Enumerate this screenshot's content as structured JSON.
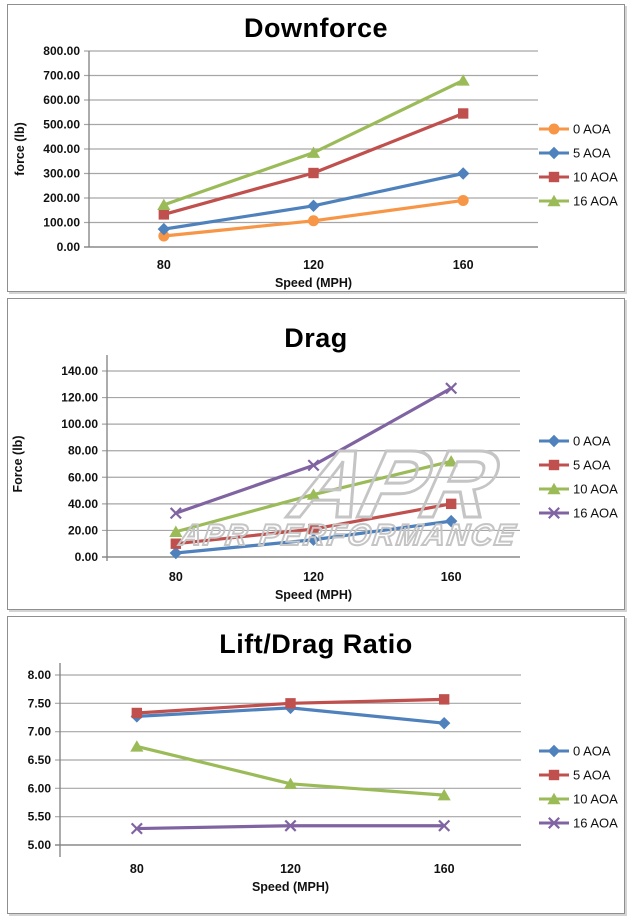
{
  "style": {
    "grid_color": "#a6a6a6",
    "axis_color": "#808080",
    "panel_border_color": "#8f8f8f",
    "text_color": "#000000",
    "watermark_color": "#c5c5c5"
  },
  "watermark": {
    "logo_text": "APR",
    "text": "APR PERFORMANCE"
  },
  "chart_data": [
    {
      "type": "line",
      "title": "Downforce",
      "xlabel": "Speed (MPH)",
      "ylabel": "force (lb)",
      "categories": [
        "80",
        "120",
        "160"
      ],
      "ylim": [
        0,
        800
      ],
      "y_step": 100,
      "y_tick_labels": [
        "0.00",
        "100.00",
        "200.00",
        "300.00",
        "400.00",
        "500.00",
        "600.00",
        "700.00",
        "800.00"
      ],
      "grid": true,
      "legend_position": "right",
      "series": [
        {
          "name": "0 AOA",
          "color": "#F79646",
          "marker": "circle",
          "values": [
            45,
            107,
            190
          ]
        },
        {
          "name": "5 AOA",
          "color": "#4F81BD",
          "marker": "diamond",
          "values": [
            73,
            168,
            300
          ]
        },
        {
          "name": "10 AOA",
          "color": "#C0504D",
          "marker": "square",
          "values": [
            133,
            302,
            545
          ]
        },
        {
          "name": "16 AOA",
          "color": "#9BBB59",
          "marker": "triangle",
          "values": [
            172,
            385,
            680
          ]
        }
      ]
    },
    {
      "type": "line",
      "title": "Drag",
      "xlabel": "Speed (MPH)",
      "ylabel": "Force (lb)",
      "categories": [
        "80",
        "120",
        "160"
      ],
      "ylim": [
        0,
        140
      ],
      "y_step": 20,
      "y_tick_labels": [
        "0.00",
        "20.00",
        "40.00",
        "60.00",
        "80.00",
        "100.00",
        "120.00",
        "140.00"
      ],
      "grid": true,
      "legend_position": "right",
      "series": [
        {
          "name": "0 AOA",
          "color": "#4F81BD",
          "marker": "diamond",
          "values": [
            3,
            13,
            27
          ]
        },
        {
          "name": "5 AOA",
          "color": "#C0504D",
          "marker": "square",
          "values": [
            10,
            21,
            40
          ]
        },
        {
          "name": "10 AOA",
          "color": "#9BBB59",
          "marker": "triangle",
          "values": [
            19,
            47,
            72
          ]
        },
        {
          "name": "16 AOA",
          "color": "#8064A2",
          "marker": "x",
          "values": [
            33,
            69,
            127
          ]
        }
      ]
    },
    {
      "type": "line",
      "title": "Lift/Drag Ratio",
      "xlabel": "Speed (MPH)",
      "ylabel": "",
      "categories": [
        "80",
        "120",
        "160"
      ],
      "ylim": [
        5.0,
        8.0
      ],
      "y_step": 0.5,
      "y_tick_labels": [
        "5.00",
        "5.50",
        "6.00",
        "6.50",
        "7.00",
        "7.50",
        "8.00"
      ],
      "grid": true,
      "legend_position": "right",
      "series": [
        {
          "name": "0 AOA",
          "color": "#4F81BD",
          "marker": "diamond",
          "values": [
            7.27,
            7.42,
            7.15
          ]
        },
        {
          "name": "5 AOA",
          "color": "#C0504D",
          "marker": "square",
          "values": [
            7.33,
            7.5,
            7.57
          ]
        },
        {
          "name": "10 AOA",
          "color": "#9BBB59",
          "marker": "triangle",
          "values": [
            6.74,
            6.08,
            5.88
          ]
        },
        {
          "name": "16 AOA",
          "color": "#8064A2",
          "marker": "x",
          "values": [
            5.29,
            5.34,
            5.34
          ]
        }
      ]
    }
  ]
}
